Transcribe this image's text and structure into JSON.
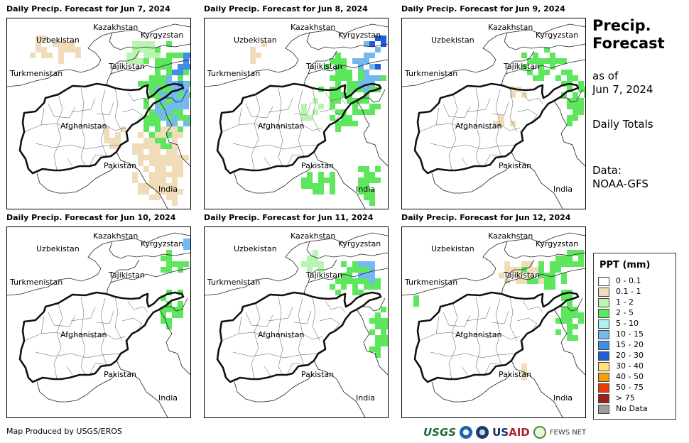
{
  "panels": [
    {
      "title": "Daily Precip. Forecast for Jun 7, 2024"
    },
    {
      "title": "Daily Precip. Forecast for Jun 8, 2024"
    },
    {
      "title": "Daily Precip. Forecast for Jun 9, 2024"
    },
    {
      "title": "Daily Precip. Forecast for Jun 10, 2024"
    },
    {
      "title": "Daily Precip. Forecast for Jun 11, 2024"
    },
    {
      "title": "Daily Precip. Forecast for Jun 12, 2024"
    }
  ],
  "map_labels": {
    "kazakhstan": "Kazakhstan",
    "uzbekistan": "Uzbekistan",
    "kyrgyzstan": "Kyrgyzstan",
    "tajikistan": "Tajikistan",
    "turkmenistan": "Turkmenistan",
    "afghanistan": "Afghanistan",
    "pakistan": "Pakistan",
    "india": "India"
  },
  "side": {
    "title_line1": "Precip.",
    "title_line2": "Forecast",
    "asof_line1": "as of",
    "asof_line2": "Jun 7, 2024",
    "daily": "Daily Totals",
    "data_line1": "Data:",
    "data_line2": "NOAA-GFS"
  },
  "legend": {
    "title": "PPT (mm)",
    "items": [
      {
        "label": "0 - 0.1",
        "color": "#ffffff"
      },
      {
        "label": "0.1 - 1",
        "color": "#f0dcb8"
      },
      {
        "label": "1 - 2",
        "color": "#b8f5b0"
      },
      {
        "label": "2 - 5",
        "color": "#5ee65e"
      },
      {
        "label": "5 - 10",
        "color": "#b3f0f5"
      },
      {
        "label": "10 - 15",
        "color": "#74b8f0"
      },
      {
        "label": "15 - 20",
        "color": "#3f8fe8"
      },
      {
        "label": "20 - 30",
        "color": "#1f5ed6"
      },
      {
        "label": "30 - 40",
        "color": "#ffe07a"
      },
      {
        "label": "40 - 50",
        "color": "#f5a000"
      },
      {
        "label": "50 - 75",
        "color": "#ee3a00"
      },
      {
        "label": "> 75",
        "color": "#a01e1e"
      },
      {
        "label": "No Data",
        "color": "#9e9e9e"
      }
    ]
  },
  "footer": {
    "credit": "Map Produced by USGS/EROS",
    "usgs": "USGS",
    "usaid_us": "US",
    "usaid_aid": "AID",
    "fews": "FEWS NET"
  }
}
